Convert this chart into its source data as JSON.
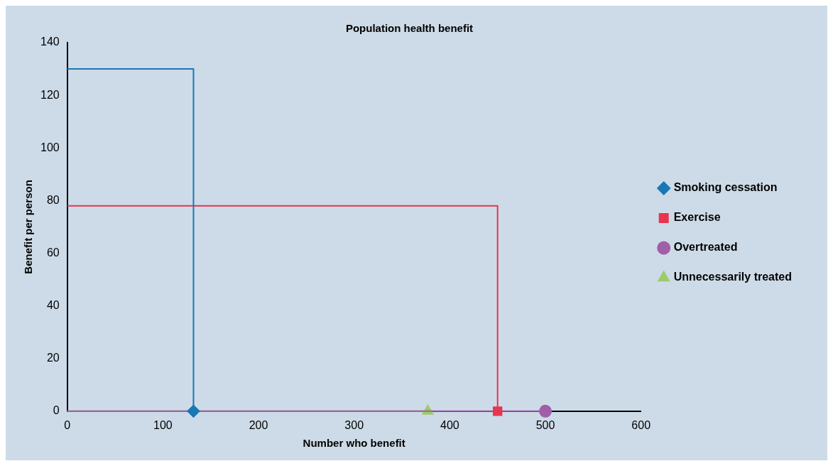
{
  "chart_data": {
    "type": "line",
    "title": "Population health benefit",
    "xlabel": "Number who benefit",
    "ylabel": "Benefit per person",
    "series": [
      {
        "name": "Smoking cessation",
        "type": "step",
        "color": "#1a78b4",
        "marker": "diamond",
        "x": [
          0,
          132
        ],
        "values": [
          130,
          0
        ]
      },
      {
        "name": "Exercise",
        "type": "step",
        "color": "#e8344e",
        "marker": "square",
        "x": [
          0,
          450
        ],
        "values": [
          78,
          0
        ]
      },
      {
        "name": "Overtreated",
        "color": "#a05fa8",
        "marker": "circle",
        "x": [
          0,
          500
        ],
        "values": [
          0,
          0
        ]
      },
      {
        "name": "Unnecessarily treated",
        "color": "#9ccc6a",
        "marker": "triangle",
        "x": [
          0,
          377
        ],
        "values": [
          0,
          0
        ]
      }
    ],
    "xlim": [
      0,
      600
    ],
    "xticks": [
      0,
      100,
      200,
      300,
      400,
      500,
      600
    ],
    "ylim": [
      0,
      140
    ],
    "yticks": [
      0,
      20,
      40,
      60,
      80,
      100,
      120,
      140
    ],
    "grid": false,
    "legend": "right"
  }
}
